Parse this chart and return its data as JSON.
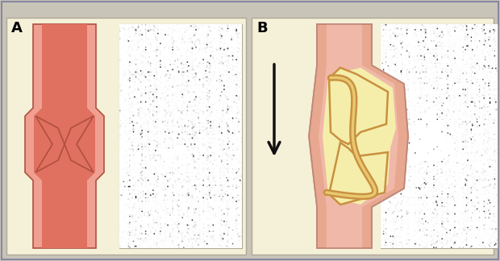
{
  "figure_bg": "#c8c4b8",
  "outer_border_color": "#a0a0a0",
  "panel_bg": "#f5f0d8",
  "panel_border": "#b0a898",
  "vessel_color_A": "#e07060",
  "vessel_wall_A": "#f0a090",
  "vessel_outline_A": "#b05040",
  "vessel_color_B": "#f0b8a8",
  "vessel_wall_B": "#e8a890",
  "vessel_outline_B": "#c08878",
  "sinus_fill_B": "#f5eeaa",
  "cusp_outline_B": "#c89040",
  "arrow_color": "#111111",
  "label_A": "A",
  "label_B": "B",
  "label_fontsize": 13,
  "label_fontweight": "bold",
  "us_bg": "#303030",
  "us_dark": 0.25,
  "us_gain": 0.55
}
